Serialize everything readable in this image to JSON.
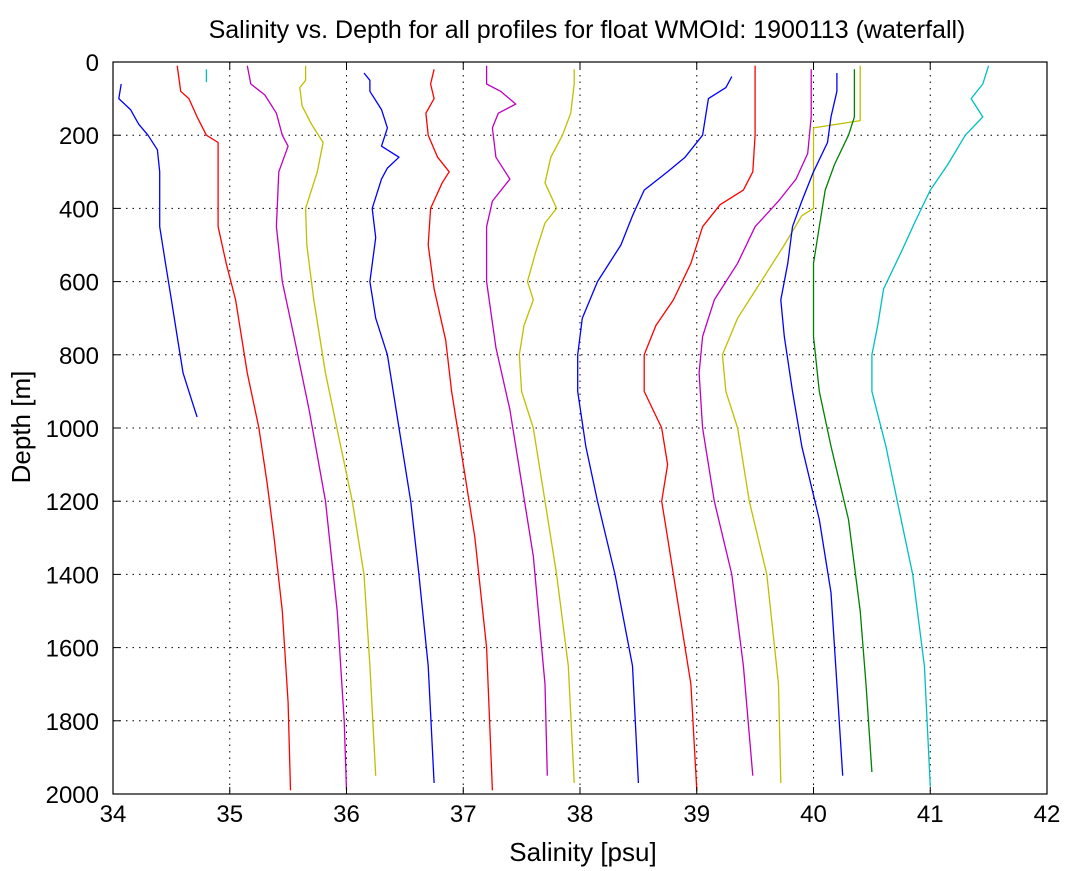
{
  "chart_data": {
    "type": "line",
    "title": "Salinity vs. Depth for all profiles for float WMOId: 1900113 (waterfall)",
    "xlabel": "Salinity [psu]",
    "ylabel": "Depth [m]",
    "xlim": [
      34,
      42
    ],
    "ylim": [
      0,
      2000
    ],
    "y_inverted": true,
    "grid": true,
    "grid_style": "dotted",
    "x_ticks": [
      "34",
      "35",
      "36",
      "37",
      "38",
      "39",
      "40",
      "41",
      "42"
    ],
    "y_ticks": [
      "0",
      "200",
      "400",
      "600",
      "800",
      "1000",
      "1200",
      "1400",
      "1600",
      "1800",
      "2000"
    ],
    "series": [
      {
        "color": "#0000ff",
        "points": [
          [
            34.07,
            60
          ],
          [
            34.05,
            100
          ],
          [
            34.15,
            130
          ],
          [
            34.22,
            170
          ],
          [
            34.3,
            200
          ],
          [
            34.38,
            240
          ],
          [
            34.4,
            300
          ],
          [
            34.4,
            450
          ],
          [
            34.45,
            550
          ],
          [
            34.5,
            650
          ],
          [
            34.55,
            750
          ],
          [
            34.6,
            850
          ],
          [
            34.68,
            930
          ],
          [
            34.72,
            970
          ]
        ]
      },
      {
        "color": "#00bfbf",
        "points": [
          [
            34.8,
            20
          ],
          [
            34.8,
            55
          ]
        ]
      },
      {
        "color": "#ff0000",
        "points": [
          [
            34.55,
            10
          ],
          [
            34.58,
            80
          ],
          [
            34.65,
            100
          ],
          [
            34.72,
            150
          ],
          [
            34.8,
            200
          ],
          [
            34.9,
            220
          ],
          [
            34.9,
            450
          ],
          [
            34.97,
            550
          ],
          [
            35.05,
            650
          ],
          [
            35.15,
            850
          ],
          [
            35.25,
            1000
          ],
          [
            35.32,
            1150
          ],
          [
            35.38,
            1300
          ],
          [
            35.45,
            1500
          ],
          [
            35.5,
            1750
          ],
          [
            35.52,
            1990
          ]
        ]
      },
      {
        "color": "#bf00bf",
        "points": [
          [
            35.15,
            10
          ],
          [
            35.18,
            60
          ],
          [
            35.3,
            90
          ],
          [
            35.4,
            140
          ],
          [
            35.45,
            200
          ],
          [
            35.5,
            230
          ],
          [
            35.42,
            300
          ],
          [
            35.4,
            450
          ],
          [
            35.45,
            600
          ],
          [
            35.55,
            750
          ],
          [
            35.68,
            950
          ],
          [
            35.82,
            1200
          ],
          [
            35.92,
            1500
          ],
          [
            35.98,
            1800
          ],
          [
            36,
            1990
          ]
        ]
      },
      {
        "color": "#bfbf00",
        "points": [
          [
            35.65,
            10
          ],
          [
            35.65,
            50
          ],
          [
            35.6,
            70
          ],
          [
            35.62,
            120
          ],
          [
            35.7,
            170
          ],
          [
            35.8,
            220
          ],
          [
            35.75,
            300
          ],
          [
            35.65,
            400
          ],
          [
            35.66,
            500
          ],
          [
            35.72,
            650
          ],
          [
            35.82,
            850
          ],
          [
            35.95,
            1050
          ],
          [
            36.05,
            1200
          ],
          [
            36.15,
            1400
          ],
          [
            36.2,
            1650
          ],
          [
            36.25,
            1950
          ]
        ]
      },
      {
        "color": "#0000ff",
        "points": [
          [
            36.15,
            30
          ],
          [
            36.2,
            50
          ],
          [
            36.2,
            80
          ],
          [
            36.3,
            130
          ],
          [
            36.35,
            180
          ],
          [
            36.3,
            230
          ],
          [
            36.45,
            260
          ],
          [
            36.35,
            290
          ],
          [
            36.3,
            320
          ],
          [
            36.22,
            400
          ],
          [
            36.25,
            480
          ],
          [
            36.2,
            600
          ],
          [
            36.25,
            700
          ],
          [
            36.35,
            800
          ],
          [
            36.45,
            1000
          ],
          [
            36.55,
            1200
          ],
          [
            36.62,
            1400
          ],
          [
            36.7,
            1650
          ],
          [
            36.75,
            1970
          ]
        ]
      },
      {
        "color": "#ff0000",
        "points": [
          [
            36.75,
            20
          ],
          [
            36.72,
            60
          ],
          [
            36.75,
            100
          ],
          [
            36.68,
            140
          ],
          [
            36.7,
            200
          ],
          [
            36.78,
            260
          ],
          [
            36.88,
            300
          ],
          [
            36.82,
            330
          ],
          [
            36.72,
            400
          ],
          [
            36.7,
            500
          ],
          [
            36.75,
            620
          ],
          [
            36.85,
            760
          ],
          [
            36.9,
            900
          ],
          [
            37,
            1100
          ],
          [
            37.1,
            1300
          ],
          [
            37.2,
            1600
          ],
          [
            37.25,
            1990
          ]
        ]
      },
      {
        "color": "#bf00bf",
        "points": [
          [
            37.2,
            10
          ],
          [
            37.2,
            60
          ],
          [
            37.32,
            80
          ],
          [
            37.45,
            115
          ],
          [
            37.3,
            140
          ],
          [
            37.25,
            180
          ],
          [
            37.28,
            260
          ],
          [
            37.4,
            320
          ],
          [
            37.25,
            380
          ],
          [
            37.2,
            450
          ],
          [
            37.2,
            600
          ],
          [
            37.28,
            780
          ],
          [
            37.4,
            950
          ],
          [
            37.5,
            1150
          ],
          [
            37.6,
            1350
          ],
          [
            37.7,
            1700
          ],
          [
            37.72,
            1950
          ]
        ]
      },
      {
        "color": "#bfbf00",
        "points": [
          [
            37.95,
            20
          ],
          [
            37.95,
            60
          ],
          [
            37.92,
            140
          ],
          [
            37.85,
            200
          ],
          [
            37.75,
            260
          ],
          [
            37.7,
            330
          ],
          [
            37.8,
            400
          ],
          [
            37.7,
            440
          ],
          [
            37.62,
            520
          ],
          [
            37.55,
            600
          ],
          [
            37.6,
            650
          ],
          [
            37.52,
            720
          ],
          [
            37.48,
            800
          ],
          [
            37.5,
            900
          ],
          [
            37.6,
            1000
          ],
          [
            37.7,
            1200
          ],
          [
            37.8,
            1400
          ],
          [
            37.9,
            1650
          ],
          [
            37.95,
            1970
          ]
        ]
      },
      {
        "color": "#0000ff",
        "points": [
          [
            39.3,
            40
          ],
          [
            39.25,
            70
          ],
          [
            39.1,
            100
          ],
          [
            39.05,
            200
          ],
          [
            38.9,
            260
          ],
          [
            38.75,
            300
          ],
          [
            38.55,
            350
          ],
          [
            38.45,
            420
          ],
          [
            38.35,
            500
          ],
          [
            38.15,
            600
          ],
          [
            38.02,
            700
          ],
          [
            37.98,
            800
          ],
          [
            37.98,
            900
          ],
          [
            38.05,
            1050
          ],
          [
            38.15,
            1200
          ],
          [
            38.3,
            1400
          ],
          [
            38.45,
            1650
          ],
          [
            38.5,
            1970
          ]
        ]
      },
      {
        "color": "#ff0000",
        "points": [
          [
            39.5,
            10
          ],
          [
            39.5,
            200
          ],
          [
            39.48,
            300
          ],
          [
            39.4,
            350
          ],
          [
            39.2,
            390
          ],
          [
            39.05,
            450
          ],
          [
            38.95,
            550
          ],
          [
            38.8,
            650
          ],
          [
            38.65,
            720
          ],
          [
            38.55,
            800
          ],
          [
            38.55,
            900
          ],
          [
            38.7,
            1000
          ],
          [
            38.75,
            1100
          ],
          [
            38.7,
            1200
          ],
          [
            38.75,
            1300
          ],
          [
            38.85,
            1500
          ],
          [
            38.95,
            1700
          ],
          [
            39,
            1990
          ]
        ]
      },
      {
        "color": "#bf00bf",
        "points": [
          [
            39.98,
            20
          ],
          [
            39.98,
            150
          ],
          [
            39.95,
            250
          ],
          [
            39.85,
            320
          ],
          [
            39.7,
            380
          ],
          [
            39.5,
            450
          ],
          [
            39.35,
            550
          ],
          [
            39.15,
            650
          ],
          [
            39.05,
            750
          ],
          [
            39.02,
            850
          ],
          [
            39.05,
            1000
          ],
          [
            39.15,
            1200
          ],
          [
            39.3,
            1400
          ],
          [
            39.4,
            1650
          ],
          [
            39.48,
            1950
          ]
        ]
      },
      {
        "color": "#bfbf00",
        "points": [
          [
            40.4,
            10
          ],
          [
            40.4,
            160
          ],
          [
            40.0,
            180
          ],
          [
            40.0,
            400
          ],
          [
            39.9,
            420
          ],
          [
            39.75,
            500
          ],
          [
            39.55,
            600
          ],
          [
            39.35,
            700
          ],
          [
            39.22,
            800
          ],
          [
            39.25,
            900
          ],
          [
            39.35,
            1000
          ],
          [
            39.45,
            1200
          ],
          [
            39.6,
            1400
          ],
          [
            39.7,
            1700
          ],
          [
            39.72,
            1970
          ]
        ]
      },
      {
        "color": "#0000ff",
        "points": [
          [
            40.2,
            30
          ],
          [
            40.2,
            80
          ],
          [
            40.15,
            150
          ],
          [
            40.12,
            220
          ],
          [
            40.0,
            300
          ],
          [
            39.9,
            380
          ],
          [
            39.82,
            450
          ],
          [
            39.78,
            550
          ],
          [
            39.72,
            650
          ],
          [
            39.75,
            750
          ],
          [
            39.82,
            900
          ],
          [
            39.9,
            1050
          ],
          [
            40.05,
            1250
          ],
          [
            40.15,
            1450
          ],
          [
            40.2,
            1700
          ],
          [
            40.25,
            1950
          ]
        ]
      },
      {
        "color": "#008000",
        "points": [
          [
            40.35,
            20
          ],
          [
            40.35,
            150
          ],
          [
            40.3,
            200
          ],
          [
            40.18,
            280
          ],
          [
            40.1,
            350
          ],
          [
            40.05,
            450
          ],
          [
            40.0,
            550
          ],
          [
            40.0,
            750
          ],
          [
            40.05,
            900
          ],
          [
            40.15,
            1050
          ],
          [
            40.3,
            1250
          ],
          [
            40.4,
            1500
          ],
          [
            40.45,
            1700
          ],
          [
            40.5,
            1940
          ]
        ]
      },
      {
        "color": "#00bfbf",
        "points": [
          [
            41.5,
            10
          ],
          [
            41.45,
            60
          ],
          [
            41.35,
            100
          ],
          [
            41.45,
            150
          ],
          [
            41.3,
            200
          ],
          [
            41.15,
            280
          ],
          [
            41,
            350
          ],
          [
            40.88,
            430
          ],
          [
            40.75,
            520
          ],
          [
            40.6,
            620
          ],
          [
            40.55,
            720
          ],
          [
            40.5,
            800
          ],
          [
            40.5,
            900
          ],
          [
            40.62,
            1050
          ],
          [
            40.75,
            1250
          ],
          [
            40.85,
            1400
          ],
          [
            40.95,
            1650
          ],
          [
            41,
            1980
          ]
        ]
      }
    ]
  }
}
